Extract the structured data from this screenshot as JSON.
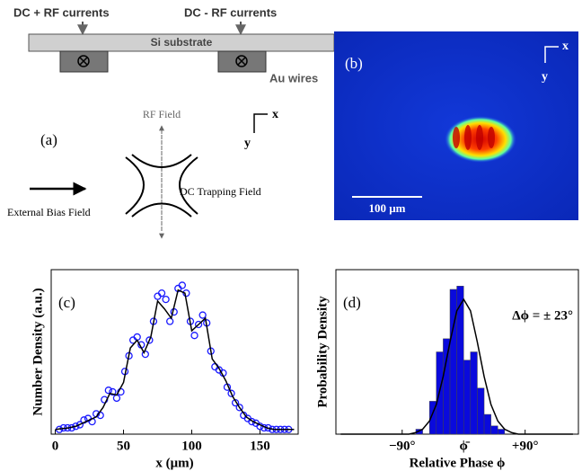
{
  "diagram": {
    "label": "(a)",
    "current_left": "DC + RF currents",
    "current_right": "DC - RF currents",
    "substrate": "Si substrate",
    "wires": "Au wires",
    "rf_field": "RF Field",
    "trap_field": "DC Trapping Field",
    "bias_field": "External Bias Field",
    "axis_x": "x",
    "axis_y": "y"
  },
  "image": {
    "label": "(b)",
    "scale_bar": "100 μm",
    "axis_x": "x",
    "axis_y": "y"
  },
  "chart_data": [
    {
      "type": "scatter",
      "label": "(c)",
      "xlabel": "x (μm)",
      "ylabel": "Number Density (a.u.)",
      "xlim": [
        -3,
        178
      ],
      "ylim": [
        0,
        1.05
      ],
      "xticks": [
        0,
        50,
        100,
        150
      ],
      "series": [
        {
          "type": "scatter",
          "color": "#1a1aff",
          "x": [
            3,
            6,
            9,
            12,
            15,
            18,
            21,
            24,
            27,
            30,
            33,
            36,
            39,
            42,
            45,
            48,
            51,
            54,
            57,
            60,
            63,
            66,
            69,
            72,
            75,
            78,
            81,
            84,
            87,
            90,
            93,
            96,
            99,
            102,
            105,
            108,
            111,
            114,
            117,
            120,
            123,
            126,
            129,
            132,
            135,
            138,
            141,
            144,
            147,
            150,
            153,
            156,
            159,
            162,
            165,
            168,
            171
          ],
          "values": [
            0.03,
            0.04,
            0.04,
            0.04,
            0.05,
            0.06,
            0.09,
            0.1,
            0.08,
            0.13,
            0.12,
            0.22,
            0.28,
            0.27,
            0.23,
            0.27,
            0.4,
            0.5,
            0.6,
            0.62,
            0.57,
            0.51,
            0.6,
            0.72,
            0.88,
            0.9,
            0.86,
            0.72,
            0.78,
            0.93,
            0.95,
            0.9,
            0.72,
            0.63,
            0.7,
            0.76,
            0.71,
            0.53,
            0.43,
            0.41,
            0.39,
            0.3,
            0.26,
            0.2,
            0.17,
            0.12,
            0.1,
            0.08,
            0.07,
            0.05,
            0.04,
            0.04,
            0.03,
            0.03,
            0.03,
            0.03,
            0.03
          ]
        },
        {
          "type": "line",
          "color": "#000000",
          "x": [
            0,
            5,
            10,
            15,
            20,
            25,
            30,
            35,
            40,
            45,
            50,
            55,
            60,
            65,
            70,
            75,
            80,
            85,
            90,
            95,
            100,
            105,
            110,
            115,
            120,
            125,
            130,
            135,
            140,
            145,
            150,
            155,
            160,
            165,
            170,
            175
          ],
          "values": [
            0.03,
            0.035,
            0.04,
            0.05,
            0.07,
            0.09,
            0.11,
            0.17,
            0.26,
            0.25,
            0.33,
            0.55,
            0.6,
            0.52,
            0.62,
            0.85,
            0.8,
            0.74,
            0.92,
            0.9,
            0.66,
            0.7,
            0.74,
            0.48,
            0.42,
            0.34,
            0.24,
            0.17,
            0.11,
            0.08,
            0.06,
            0.04,
            0.03,
            0.03,
            0.03,
            0.03
          ]
        }
      ]
    },
    {
      "type": "histogram",
      "label": "(d)",
      "annotation": "Δϕ = ± 23°",
      "xlabel": "Relative Phase ϕ",
      "ylabel": "Probability Density",
      "xlim": [
        -187,
        168
      ],
      "ylim": [
        0,
        1
      ],
      "xticks": [
        {
          "value": -90,
          "label": "−90°"
        },
        {
          "value": 0,
          "label": "ϕ̄"
        },
        {
          "value": 90,
          "label": "+90°"
        }
      ],
      "bins": [
        -70,
        -60,
        -50,
        -40,
        -30,
        -20,
        -10,
        0,
        10,
        20,
        30,
        40,
        50,
        60
      ],
      "values": [
        0.03,
        0,
        0.2,
        0.5,
        0.58,
        0.88,
        0.9,
        0.45,
        0.5,
        0.28,
        0.12,
        0.05,
        0.03
      ],
      "color": "#0a0adc",
      "fit": {
        "color": "#000000",
        "x": [
          -180,
          -100,
          -80,
          -70,
          -60,
          -50,
          -40,
          -30,
          -20,
          -10,
          0,
          10,
          20,
          30,
          40,
          50,
          60,
          70,
          80,
          100,
          160
        ],
        "values": [
          0,
          0,
          0,
          0.01,
          0.03,
          0.08,
          0.18,
          0.35,
          0.56,
          0.75,
          0.82,
          0.75,
          0.56,
          0.35,
          0.18,
          0.08,
          0.03,
          0.01,
          0,
          0,
          0
        ]
      }
    }
  ]
}
